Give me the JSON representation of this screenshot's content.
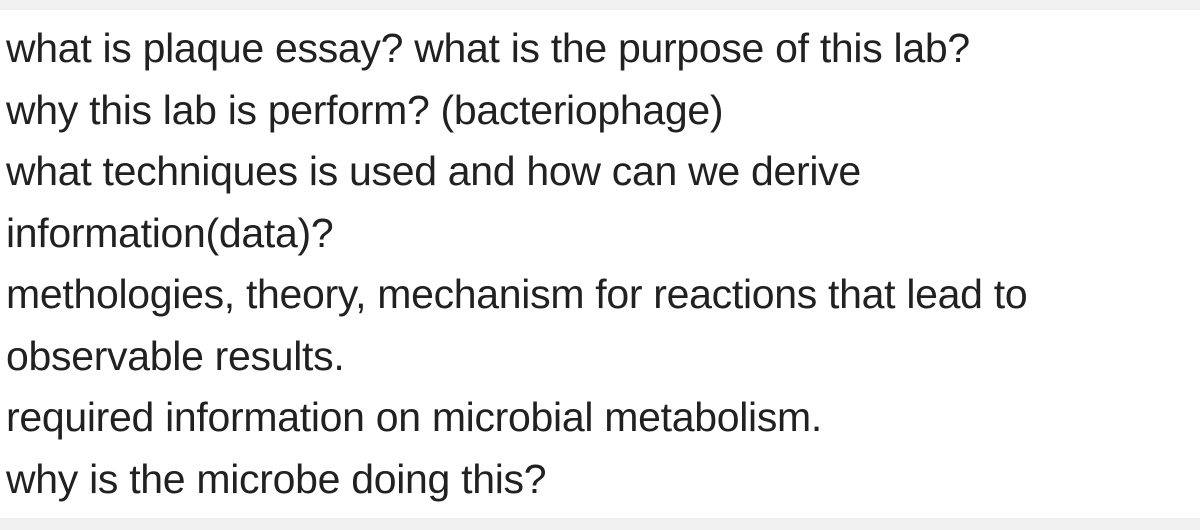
{
  "paragraph": {
    "lines": [
      "what is plaque essay? what is the purpose of this lab?",
      "why this lab is perform? (bacteriophage)",
      "what techniques is used and how can we derive",
      "information(data)?",
      "methologies, theory, mechanism for reactions that lead to",
      "observable results.",
      "required information on microbial metabolism.",
      "why is the microbe doing this?"
    ],
    "font_size": 41,
    "line_height": 1.5,
    "text_color": "#212121",
    "background_color": "#ffffff",
    "page_background": "#f0f0f0"
  }
}
